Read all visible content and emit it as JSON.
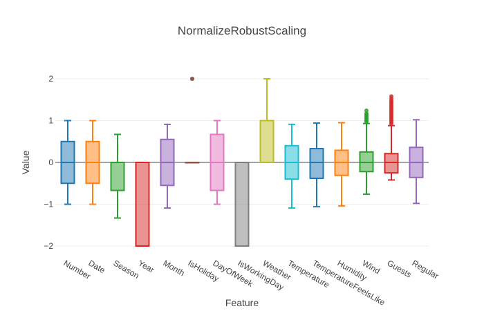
{
  "chart_data": {
    "type": "box",
    "title": "NormalizeRobustScaling",
    "xlabel": "Feature",
    "ylabel": "Value",
    "ylim": [
      -2.2,
      2.5
    ],
    "yticks": [
      -2,
      -1,
      0,
      1,
      2
    ],
    "ytick_labels": [
      "−2",
      "−1",
      "0",
      "1",
      "2"
    ],
    "grid": true,
    "legend": "none",
    "categories": [
      "Number",
      "Date",
      "Season",
      "Year",
      "Month",
      "IsHoliday",
      "DayOfWeek",
      "IsWorkingDay",
      "Weather",
      "Temperature",
      "TemperatureFeelsLike",
      "Humidity",
      "Wind",
      "Guests",
      "Regular"
    ],
    "series": [
      {
        "category": "Number",
        "color": "#1f77b4",
        "min": -1.0,
        "q1": -0.5,
        "median": 0.0,
        "q3": 0.5,
        "max": 1.0,
        "outliers": []
      },
      {
        "category": "Date",
        "color": "#ff7f0e",
        "min": -1.0,
        "q1": -0.5,
        "median": 0.0,
        "q3": 0.5,
        "max": 1.0,
        "outliers": []
      },
      {
        "category": "Season",
        "color": "#2ca02c",
        "min": -1.33,
        "q1": -0.67,
        "median": 0.0,
        "q3": 0.0,
        "max": 0.67,
        "outliers": []
      },
      {
        "category": "Year",
        "color": "#d62728",
        "min": -2.0,
        "q1": -2.0,
        "median": 0.0,
        "q3": 0.0,
        "max": 0.0,
        "outliers": []
      },
      {
        "category": "Month",
        "color": "#9467bd",
        "min": -1.09,
        "q1": -0.55,
        "median": 0.0,
        "q3": 0.55,
        "max": 0.91,
        "outliers": []
      },
      {
        "category": "IsHoliday",
        "color": "#8c564b",
        "min": 0.0,
        "q1": 0.0,
        "median": 0.0,
        "q3": 0.0,
        "max": 0.0,
        "outliers": [
          2.0,
          2.0
        ]
      },
      {
        "category": "DayOfWeek",
        "color": "#e377c2",
        "min": -1.0,
        "q1": -0.67,
        "median": 0.0,
        "q3": 0.67,
        "max": 1.0,
        "outliers": []
      },
      {
        "category": "IsWorkingDay",
        "color": "#7f7f7f",
        "min": -2.0,
        "q1": -2.0,
        "median": 0.0,
        "q3": 0.0,
        "max": 0.0,
        "outliers": []
      },
      {
        "category": "Weather",
        "color": "#bcbd22",
        "min": 0.0,
        "q1": 0.0,
        "median": 0.0,
        "q3": 1.0,
        "max": 2.0,
        "outliers": []
      },
      {
        "category": "Temperature",
        "color": "#17becf",
        "min": -1.09,
        "q1": -0.4,
        "median": 0.0,
        "q3": 0.4,
        "max": 0.91,
        "outliers": []
      },
      {
        "category": "TemperatureFeelsLike",
        "color": "#1f77b4",
        "min": -1.06,
        "q1": -0.38,
        "median": 0.0,
        "q3": 0.33,
        "max": 0.94,
        "outliers": []
      },
      {
        "category": "Humidity",
        "color": "#ff7f0e",
        "min": -1.04,
        "q1": -0.31,
        "median": 0.0,
        "q3": 0.29,
        "max": 0.95,
        "outliers": []
      },
      {
        "category": "Wind",
        "color": "#2ca02c",
        "min": -0.76,
        "q1": -0.22,
        "median": 0.0,
        "q3": 0.25,
        "max": 0.93,
        "outliers": [
          0.96,
          0.99,
          1.02,
          1.05,
          1.08,
          1.11,
          1.14,
          1.17,
          1.24
        ]
      },
      {
        "category": "Guests",
        "color": "#d62728",
        "min": -0.42,
        "q1": -0.25,
        "median": 0.0,
        "q3": 0.21,
        "max": 0.88,
        "outliers": [
          0.92,
          0.96,
          1.0,
          1.04,
          1.08,
          1.12,
          1.16,
          1.2,
          1.24,
          1.28,
          1.32,
          1.36,
          1.4,
          1.44,
          1.48,
          1.53,
          1.58
        ]
      },
      {
        "category": "Regular",
        "color": "#9467bd",
        "min": -0.98,
        "q1": -0.36,
        "median": 0.0,
        "q3": 0.36,
        "max": 1.02,
        "outliers": []
      }
    ]
  }
}
